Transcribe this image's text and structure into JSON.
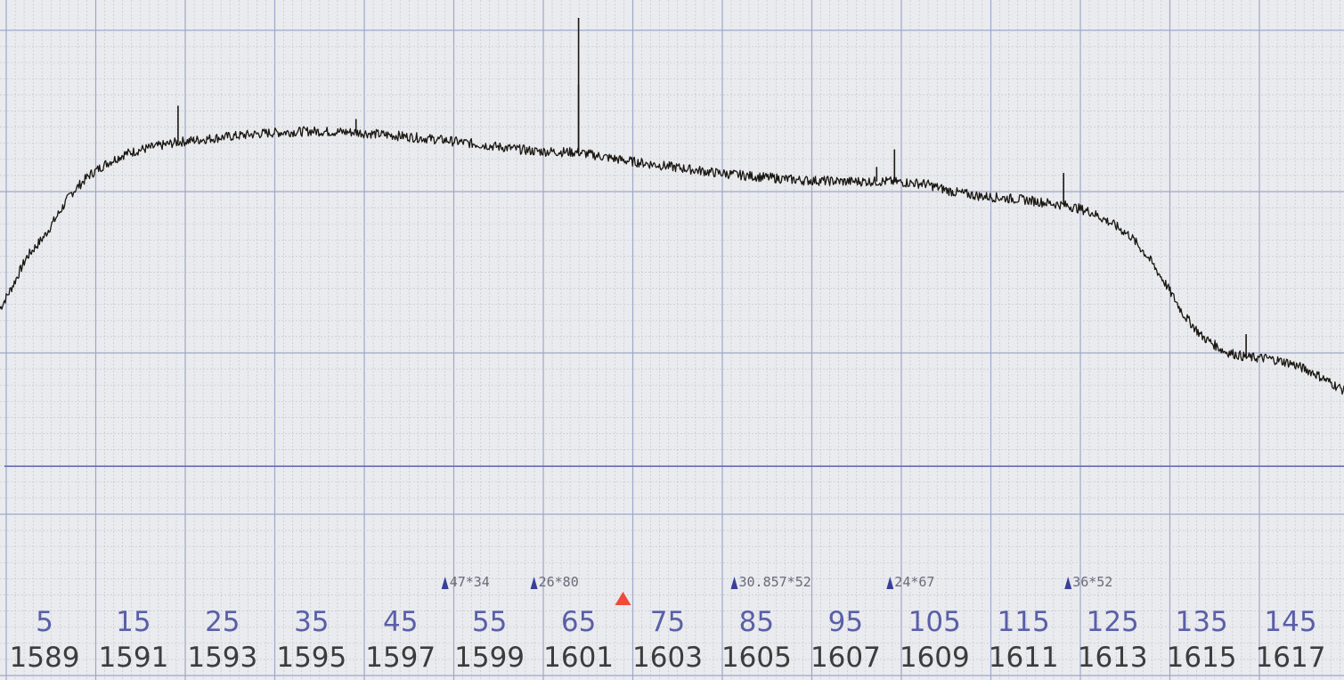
{
  "colors": {
    "background": "#e9ebee",
    "grid_minor": "#c4c8cf",
    "grid_major": "#9fa7c9",
    "trace": "#1b1712",
    "reference_line": "#6a6cb5",
    "marker_blue": "#3a3f9a",
    "marker_red": "#f04a3a",
    "top_labels": "#5a5fa8",
    "bottom_labels": "#3c3c3c"
  },
  "chart_data": {
    "type": "line",
    "title": "",
    "xlabel": "",
    "ylabel": "",
    "grid": true,
    "x_range": [
      1588,
      1618.2
    ],
    "y_range": [
      0,
      100
    ],
    "channel_axis": {
      "labels": [
        "5",
        "15",
        "25",
        "35",
        "45",
        "55",
        "65",
        "75",
        "85",
        "95",
        "105",
        "115",
        "125",
        "135",
        "145"
      ],
      "positions": [
        1589,
        1591,
        1593,
        1595,
        1597,
        1599,
        1601,
        1603,
        1605,
        1607,
        1609,
        1611,
        1613,
        1615,
        1617
      ]
    },
    "frequency_axis": {
      "labels": [
        "1589",
        "1591",
        "1593",
        "1595",
        "1597",
        "1599",
        "1601",
        "1603",
        "1605",
        "1607",
        "1609",
        "1611",
        "1613",
        "1615",
        "1617"
      ],
      "positions": [
        1589,
        1591,
        1593,
        1595,
        1597,
        1599,
        1601,
        1603,
        1605,
        1607,
        1609,
        1611,
        1613,
        1615,
        1617
      ]
    },
    "reference_level": 26,
    "series": [
      {
        "x": [
          1588.0,
          1588.3,
          1588.6,
          1589.0,
          1589.3,
          1589.6,
          1590.0,
          1590.4,
          1590.8,
          1591.2,
          1592.0,
          1593.0,
          1594.0,
          1595.0,
          1596.0,
          1597.0,
          1598.0,
          1599.0,
          1600.0,
          1601.0,
          1602.0,
          1603.0,
          1604.0,
          1605.0,
          1606.0,
          1607.0,
          1608.0,
          1608.8,
          1609.4,
          1610.0,
          1611.0,
          1612.0,
          1612.5,
          1613.0,
          1613.4,
          1613.8,
          1614.2,
          1614.6,
          1615.0,
          1615.5,
          1616.0,
          1616.5,
          1617.0,
          1617.5,
          1618.2
        ],
        "y": [
          52.0,
          56.0,
          60.5,
          64.0,
          67.5,
          71.0,
          74.0,
          76.0,
          77.5,
          78.3,
          79.5,
          80.3,
          81.0,
          81.3,
          81.1,
          80.5,
          79.8,
          78.9,
          78.0,
          77.8,
          76.5,
          75.5,
          74.5,
          73.8,
          73.2,
          73.0,
          73.0,
          72.6,
          71.3,
          70.6,
          70.0,
          69.0,
          68.0,
          66.0,
          64.0,
          60.5,
          56.0,
          51.0,
          47.5,
          45.0,
          44.0,
          43.8,
          43.0,
          41.5,
          38.5
        ]
      }
    ],
    "spikes": [
      {
        "x": 1592.0,
        "y": 85.5
      },
      {
        "x": 1596.0,
        "y": 83.3
      },
      {
        "x": 1601.0,
        "y": 89.0
      },
      {
        "x": 1601.0,
        "y": 100.0
      },
      {
        "x": 1607.7,
        "y": 75.4
      },
      {
        "x": 1608.1,
        "y": 78.3
      },
      {
        "x": 1611.9,
        "y": 74.4
      },
      {
        "x": 1616.0,
        "y": 47.8
      }
    ],
    "markers": [
      {
        "x": 1598.0,
        "label": "47*34",
        "color": "blue"
      },
      {
        "x": 1600.0,
        "label": "26*80",
        "color": "blue"
      },
      {
        "x": 1602.0,
        "label": "",
        "color": "red"
      },
      {
        "x": 1604.5,
        "label": "30.857*52",
        "color": "blue"
      },
      {
        "x": 1608.0,
        "label": "24*67",
        "color": "blue"
      },
      {
        "x": 1612.0,
        "label": "36*52",
        "color": "blue"
      }
    ]
  }
}
